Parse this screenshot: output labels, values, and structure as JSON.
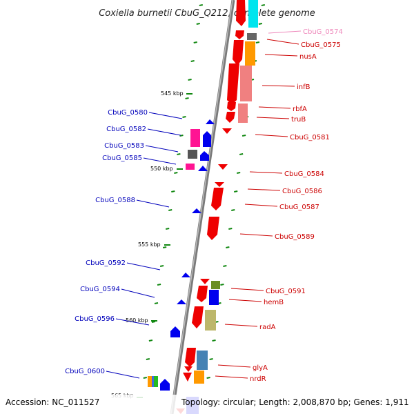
{
  "title": "Coxiella burnetii CbuG_Q212, complete genome",
  "footer": {
    "accession": "Accession: NC_011527",
    "topology": "Topology: circular; Length: 2,008,870 bp; Genes: 1,911"
  },
  "scale": {
    "ticks": [
      {
        "label": "545 kbp"
      },
      {
        "label": "550 kbp"
      },
      {
        "label": "555 kbp"
      },
      {
        "label": "560 kbp"
      },
      {
        "label": "565 kbp"
      }
    ]
  },
  "genes_right": [
    {
      "label": "CbuG_0574",
      "highlight": true
    },
    {
      "label": "CbuG_0575"
    },
    {
      "label": "nusA"
    },
    {
      "label": "infB"
    },
    {
      "label": "rbfA"
    },
    {
      "label": "truB"
    },
    {
      "label": "CbuG_0581"
    },
    {
      "label": "CbuG_0584"
    },
    {
      "label": "CbuG_0586"
    },
    {
      "label": "CbuG_0587"
    },
    {
      "label": "CbuG_0589"
    },
    {
      "label": "CbuG_0591"
    },
    {
      "label": "hemB"
    },
    {
      "label": "radA"
    },
    {
      "label": "glyA"
    },
    {
      "label": "nrdR"
    }
  ],
  "genes_left": [
    {
      "label": "CbuG_0580"
    },
    {
      "label": "CbuG_0582"
    },
    {
      "label": "CbuG_0583"
    },
    {
      "label": "CbuG_0585"
    },
    {
      "label": "CbuG_0588"
    },
    {
      "label": "CbuG_0592"
    },
    {
      "label": "CbuG_0594"
    },
    {
      "label": "CbuG_0596"
    },
    {
      "label": "CbuG_0600"
    }
  ],
  "colors": {
    "forward_label": "#cc0000",
    "reverse_label": "#0000bb",
    "highlight_label": "#ee88bb",
    "forward_gene": "#ee0000",
    "reverse_gene": "#0000ee",
    "backbone": "#888888",
    "tick": "#118811"
  }
}
